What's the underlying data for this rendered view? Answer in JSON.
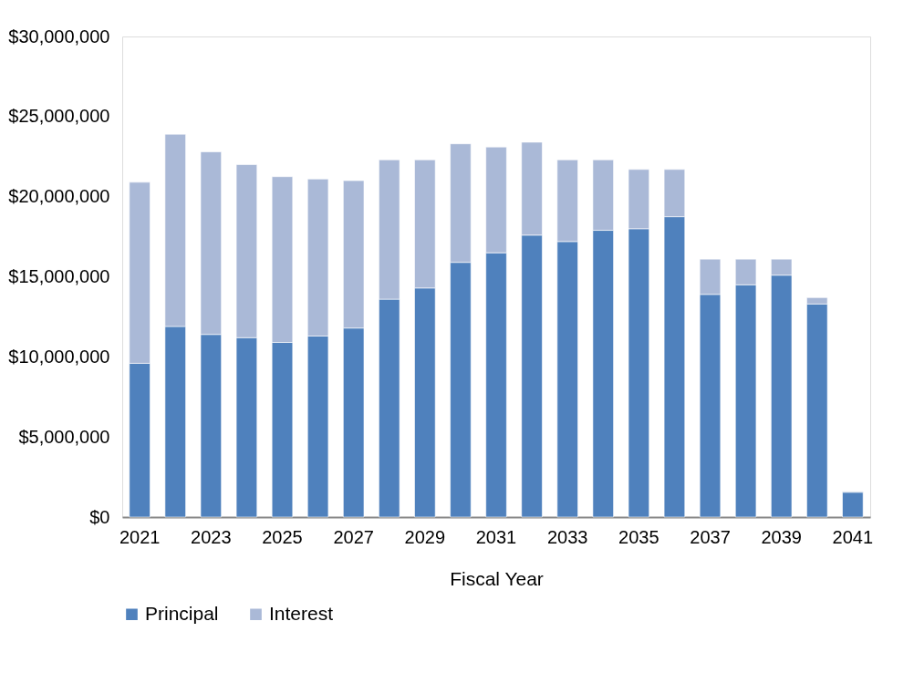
{
  "chart_data": {
    "type": "bar",
    "stacked": true,
    "xlabel": "Fiscal Year",
    "categories": [
      "2021",
      null,
      "2023",
      null,
      "2025",
      null,
      "2027",
      null,
      "2029",
      null,
      "2031",
      null,
      "2033",
      null,
      "2035",
      null,
      "2037",
      null,
      "2039",
      null,
      "2041"
    ],
    "series": [
      {
        "name": "Principal",
        "color": "#4f81bd",
        "values": [
          9600000,
          11900000,
          11400000,
          11200000,
          10900000,
          11300000,
          11800000,
          13600000,
          14300000,
          15900000,
          16500000,
          17600000,
          17200000,
          17900000,
          18000000,
          18750000,
          13900000,
          14500000,
          15100000,
          13300000,
          1550000
        ]
      },
      {
        "name": "Interest",
        "color": "#aab9d7",
        "values": [
          11300000,
          12000000,
          11400000,
          10800000,
          10350000,
          9800000,
          9200000,
          8700000,
          8000000,
          7400000,
          6600000,
          5800000,
          5100000,
          4400000,
          3700000,
          2950000,
          2200000,
          1600000,
          1000000,
          400000,
          50000
        ]
      }
    ],
    "ylim": [
      0,
      30000000
    ],
    "yticks": [
      {
        "value": 0,
        "label": "$0"
      },
      {
        "value": 5000000,
        "label": "$5,000,000"
      },
      {
        "value": 10000000,
        "label": "$10,000,000"
      },
      {
        "value": 15000000,
        "label": "$15,000,000"
      },
      {
        "value": 20000000,
        "label": "$20,000,000"
      },
      {
        "value": 25000000,
        "label": "$25,000,000"
      },
      {
        "value": 30000000,
        "label": "$30,000,000"
      }
    ],
    "grid": false,
    "legend": "bottom"
  }
}
